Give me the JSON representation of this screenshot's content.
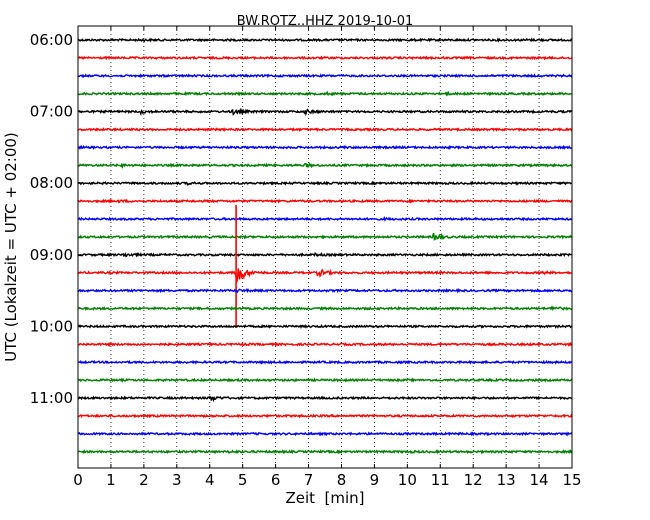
{
  "chart_data": {
    "type": "line",
    "title": "BW.ROTZ..HHZ 2019-10-01",
    "xlabel": "Zeit  [min]",
    "ylabel": "UTC (Lokalzeit = UTC + 02:00)",
    "xlim": [
      0,
      15
    ],
    "x_ticks": [
      "0",
      "1",
      "2",
      "3",
      "4",
      "5",
      "6",
      "7",
      "8",
      "9",
      "10",
      "11",
      "12",
      "13",
      "14",
      "15"
    ],
    "y_ticks": [
      "06:00",
      "07:00",
      "08:00",
      "09:00",
      "10:00",
      "11:00"
    ],
    "grid": "vertical dotted",
    "trace_colors": [
      "#000000",
      "#ff0000",
      "#0000ff",
      "#008000"
    ],
    "traces": [
      {
        "start": "06:00",
        "events": [
          {
            "x": 1.9,
            "a": 0.25
          },
          {
            "x": 10.0,
            "a": 0.1
          },
          {
            "x": 13.6,
            "a": 0.15
          }
        ]
      },
      {
        "start": "06:15",
        "events": []
      },
      {
        "start": "06:30",
        "events": []
      },
      {
        "start": "06:45",
        "events": [
          {
            "x": 7.5,
            "a": 0.3
          },
          {
            "x": 11.1,
            "a": 0.3
          }
        ]
      },
      {
        "start": "07:00",
        "events": [
          {
            "x": 1.9,
            "a": 0.5
          },
          {
            "x": 4.7,
            "a": 0.9
          },
          {
            "x": 6.9,
            "a": 0.7
          }
        ]
      },
      {
        "start": "07:15",
        "events": []
      },
      {
        "start": "07:30",
        "events": [
          {
            "x": 8.0,
            "a": 0.15
          }
        ]
      },
      {
        "start": "07:45",
        "events": [
          {
            "x": 1.3,
            "a": 0.3
          },
          {
            "x": 6.9,
            "a": 0.5
          }
        ]
      },
      {
        "start": "08:00",
        "events": [
          {
            "x": 3.3,
            "a": 0.3
          }
        ]
      },
      {
        "start": "08:15",
        "events": [
          {
            "x": 1.2,
            "a": 0.3
          }
        ]
      },
      {
        "start": "08:30",
        "events": [
          {
            "x": 9.3,
            "a": 0.15
          }
        ]
      },
      {
        "start": "08:45",
        "events": [
          {
            "x": 10.8,
            "a": 1.2
          }
        ]
      },
      {
        "start": "09:00",
        "events": [
          {
            "x": 1.4,
            "a": 0.6
          },
          {
            "x": 7.2,
            "a": 0.3
          }
        ]
      },
      {
        "start": "09:15",
        "events": [
          {
            "x": 4.8,
            "a": 6.0
          },
          {
            "x": 7.3,
            "a": 1.4
          },
          {
            "x": 14.1,
            "a": 0.3
          }
        ]
      },
      {
        "start": "09:30",
        "events": [
          {
            "x": 4.8,
            "a": 0.4
          },
          {
            "x": 15.0,
            "a": 0.4
          }
        ]
      },
      {
        "start": "09:45",
        "events": [
          {
            "x": 14.4,
            "a": 0.6
          }
        ]
      },
      {
        "start": "10:00",
        "events": []
      },
      {
        "start": "10:15",
        "events": [
          {
            "x": 4.9,
            "a": 0.2
          }
        ]
      },
      {
        "start": "10:30",
        "events": []
      },
      {
        "start": "10:45",
        "events": []
      },
      {
        "start": "11:00",
        "events": [
          {
            "x": 4.0,
            "a": 1.0
          }
        ]
      },
      {
        "start": "11:15",
        "events": []
      },
      {
        "start": "11:30",
        "events": []
      },
      {
        "start": "11:45",
        "events": [
          {
            "x": 4.6,
            "a": 0.3
          },
          {
            "x": 10.1,
            "a": 0.15
          }
        ]
      }
    ]
  }
}
